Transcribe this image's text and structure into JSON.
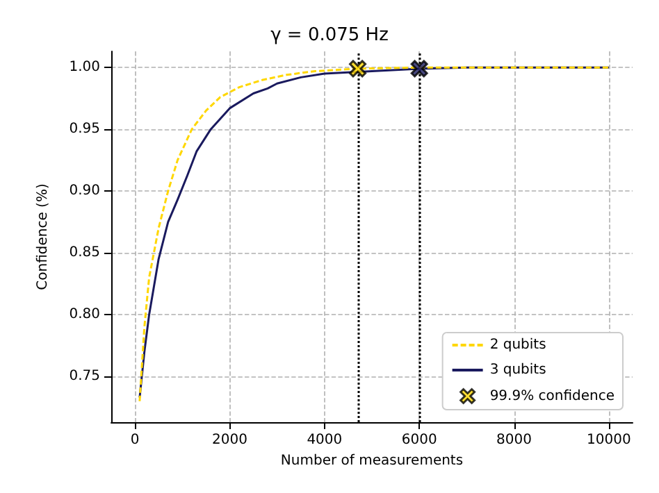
{
  "chart_data": {
    "type": "line",
    "title": "γ = 0.075 Hz",
    "xlabel": "Number of measurements",
    "ylabel": "Confidence (%)",
    "xlim": [
      -500,
      10500
    ],
    "xticks": [
      0,
      2000,
      4000,
      6000,
      8000,
      10000
    ],
    "ylim": [
      0.713,
      1.013
    ],
    "yticks": [
      0.75,
      {
        "value": 0.8,
        "label": "0.80"
      },
      0.85,
      {
        "value": 0.9,
        "label": "0.90"
      },
      0.95,
      {
        "value": 1.0,
        "label": "1.00"
      }
    ],
    "grid": true,
    "legend": "bottom right",
    "series": [
      {
        "name": "2 qubits",
        "color": "#ffd700",
        "line_style": "dashed",
        "marker": "none",
        "x": [
          100,
          200,
          300,
          500,
          700,
          900,
          1200,
          1500,
          1800,
          2200,
          2700,
          3200,
          3800,
          4700,
          6000,
          8000,
          10000
        ],
        "values": [
          0.73,
          0.79,
          0.83,
          0.87,
          0.9,
          0.925,
          0.95,
          0.965,
          0.976,
          0.984,
          0.99,
          0.994,
          0.997,
          0.999,
          1.0,
          1.0,
          1.0
        ]
      },
      {
        "name": "3 qubits",
        "color": "#1a1a5e",
        "line_style": "solid",
        "marker": "none",
        "x": [
          100,
          200,
          300,
          500,
          700,
          900,
          1100,
          1300,
          1600,
          2000,
          2500,
          2800,
          3000,
          3500,
          4000,
          5000,
          6000,
          7000,
          8000,
          10000
        ],
        "values": [
          0.733,
          0.77,
          0.8,
          0.845,
          0.875,
          0.893,
          0.912,
          0.932,
          0.95,
          0.967,
          0.979,
          0.983,
          0.987,
          0.992,
          0.995,
          0.997,
          0.999,
          1.0,
          1.0,
          1.0
        ]
      },
      {
        "name": "99.9% confidence",
        "type": "scatter",
        "marker": "cross",
        "color": "#000000",
        "colors": [
          "#ffd700",
          "#1a1a5e"
        ],
        "x": [
          4700,
          6000
        ],
        "values": [
          0.999,
          0.999
        ]
      }
    ],
    "ref_lines": [
      {
        "axis": "x",
        "value": 4700,
        "color": "#000000",
        "line_style": "dotted"
      },
      {
        "axis": "x",
        "value": 6000,
        "color": "#000000",
        "line_style": "dotted"
      }
    ]
  }
}
